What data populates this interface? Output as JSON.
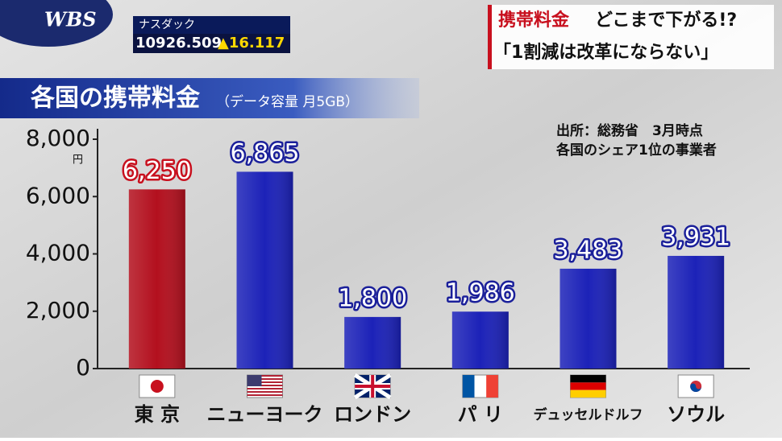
{
  "header": {
    "logo": "WBS",
    "ticker": {
      "name": "ナスダック",
      "value": "10926.509",
      "change": "▲16.117"
    },
    "caption": {
      "topic": "携帯料金",
      "headline": "どこまで下がる!?",
      "quote": "「1割減は改革にならない」"
    }
  },
  "chart_data": {
    "type": "bar",
    "title": "各国の携帯料金",
    "subtitle": "（データ容量 月5GB）",
    "notes": [
      "出所：総務省　3月時点",
      "各国のシェア1位の事業者"
    ],
    "unit": "円",
    "categories": [
      "東 京",
      "ニューヨーク",
      "ロンドン",
      "パ リ",
      "デュッセルドルフ",
      "ソウル"
    ],
    "values": [
      6250,
      6865,
      1800,
      1986,
      3483,
      3931
    ],
    "value_labels": [
      "6,250",
      "6,865",
      "1,800",
      "1,986",
      "3,483",
      "3,931"
    ],
    "colors": [
      "#b3101e",
      "#1c22b8",
      "#1c22b8",
      "#1c22b8",
      "#1c22b8",
      "#1c22b8"
    ],
    "label_colors": [
      "#c8101e",
      "#1a1f9a",
      "#1a1f9a",
      "#1a1f9a",
      "#1a1f9a",
      "#1a1f9a"
    ],
    "ylim": [
      0,
      8000
    ],
    "yticks": [
      0,
      {
        "value": 2000,
        "label": "2,000"
      },
      {
        "value": 4000,
        "label": "4,000"
      },
      {
        "value": 6000,
        "label": "6,000"
      },
      {
        "value": 8000,
        "label": "8,000"
      }
    ]
  }
}
